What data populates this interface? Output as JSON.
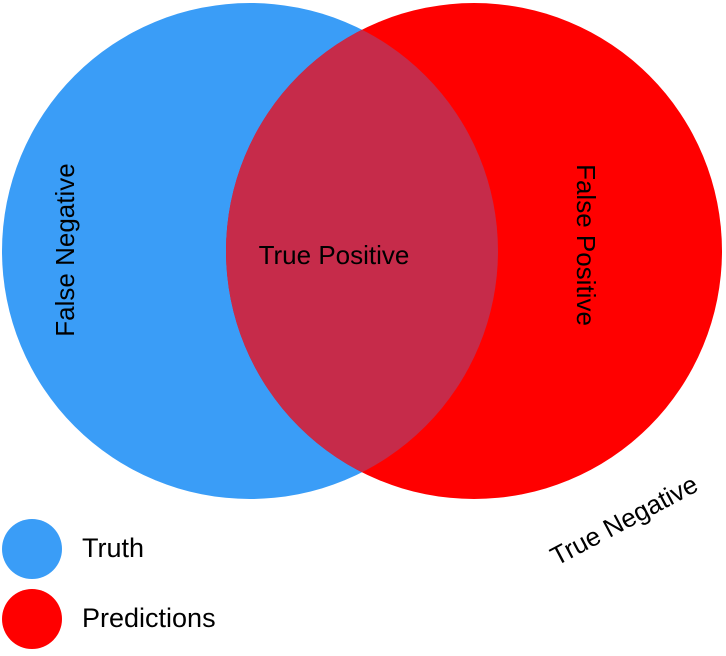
{
  "colors": {
    "truth": "#3a9df7",
    "predictions": "#ff0000",
    "overlap": "#c62b4a"
  },
  "labels": {
    "false_negative": "False Negative",
    "true_positive": "True Positive",
    "false_positive": "False Positive",
    "true_negative": "True Negative"
  },
  "legend": {
    "items": [
      {
        "label": "Truth",
        "color": "#3a9df7"
      },
      {
        "label": "Predictions",
        "color": "#ff0000"
      }
    ]
  }
}
